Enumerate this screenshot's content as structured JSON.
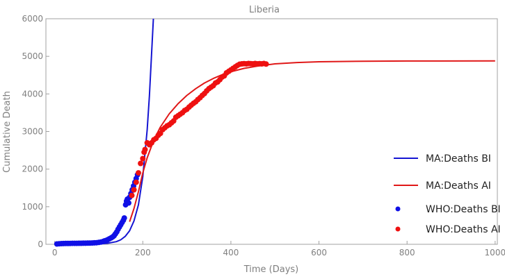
{
  "colors": {
    "ma_bi": "#1414d2",
    "ma_ai": "#e01818",
    "who_bi": "#1010e6",
    "who_ai": "#ee1010",
    "frame": "#a0a0a0",
    "text": "#7f7f7f",
    "legend_text": "#222222"
  },
  "chart_data": {
    "type": "line",
    "title": "Liberia",
    "xlabel": "Time (Days)",
    "ylabel": "Cumulative Death",
    "xlim": [
      -20,
      1005
    ],
    "ylim": [
      0,
      6000
    ],
    "xticks": [
      0,
      200,
      400,
      600,
      800,
      1000
    ],
    "yticks": [
      0,
      1000,
      2000,
      3000,
      4000,
      5000,
      6000
    ],
    "legend_position": "right",
    "series": [
      {
        "name": "MA:Deaths BI",
        "kind": "line",
        "color_key": "ma_bi",
        "x": [
          0,
          40,
          80,
          100,
          120,
          140,
          150,
          160,
          170,
          180,
          190,
          200,
          210,
          215,
          220,
          224
        ],
        "y": [
          0,
          2,
          6,
          12,
          28,
          70,
          120,
          210,
          360,
          620,
          1050,
          1800,
          3050,
          3950,
          5100,
          6000
        ]
      },
      {
        "name": "MA:Deaths AI",
        "kind": "line",
        "color_key": "ma_ai",
        "x": [
          170,
          180,
          190,
          200,
          210,
          220,
          230,
          240,
          260,
          280,
          300,
          320,
          340,
          360,
          380,
          400,
          430,
          460,
          500,
          550,
          600,
          700,
          800,
          1000
        ],
        "y": [
          600,
          950,
          1400,
          1900,
          2300,
          2620,
          2890,
          3120,
          3470,
          3740,
          3960,
          4140,
          4290,
          4410,
          4510,
          4590,
          4680,
          4740,
          4800,
          4835,
          4855,
          4870,
          4875,
          4880
        ]
      },
      {
        "name": "WHO:Deaths BI",
        "kind": "scatter",
        "color_key": "who_bi",
        "x": [
          5,
          10,
          15,
          20,
          25,
          30,
          35,
          40,
          45,
          50,
          55,
          60,
          65,
          70,
          75,
          80,
          85,
          90,
          95,
          100,
          105,
          110,
          113,
          116,
          120,
          124,
          128,
          132,
          135,
          138,
          141,
          144,
          147,
          150,
          153,
          156,
          158,
          161,
          163,
          165,
          168,
          170,
          173,
          176,
          179,
          182,
          185,
          188
        ],
        "y": [
          10,
          15,
          18,
          20,
          22,
          22,
          24,
          25,
          25,
          26,
          27,
          28,
          30,
          30,
          32,
          33,
          35,
          38,
          42,
          50,
          60,
          75,
          90,
          100,
          120,
          145,
          170,
          200,
          230,
          280,
          330,
          400,
          460,
          520,
          580,
          640,
          700,
          1050,
          1150,
          1200,
          1100,
          1250,
          1350,
          1450,
          1550,
          1650,
          1750,
          1850
        ]
      },
      {
        "name": "WHO:Deaths AI",
        "kind": "scatter",
        "color_key": "who_ai",
        "x": [
          175,
          180,
          185,
          190,
          195,
          200,
          203,
          205,
          210,
          215,
          220,
          225,
          230,
          235,
          240,
          245,
          250,
          255,
          260,
          265,
          270,
          275,
          280,
          285,
          290,
          295,
          300,
          305,
          310,
          315,
          320,
          325,
          330,
          335,
          340,
          345,
          350,
          355,
          360,
          365,
          370,
          375,
          380,
          385,
          390,
          395,
          400,
          405,
          410,
          415,
          420,
          425,
          430,
          435,
          440,
          445,
          450,
          455,
          460,
          465,
          470,
          475,
          480
        ],
        "y": [
          1300,
          1450,
          1650,
          1900,
          2150,
          2280,
          2450,
          2520,
          2700,
          2650,
          2700,
          2780,
          2820,
          2900,
          2950,
          3050,
          3100,
          3150,
          3180,
          3230,
          3280,
          3380,
          3420,
          3460,
          3500,
          3560,
          3590,
          3650,
          3700,
          3750,
          3790,
          3850,
          3900,
          3960,
          4010,
          4080,
          4140,
          4180,
          4220,
          4290,
          4320,
          4380,
          4450,
          4480,
          4560,
          4600,
          4640,
          4680,
          4720,
          4760,
          4790,
          4800,
          4805,
          4800,
          4810,
          4805,
          4800,
          4810,
          4800,
          4805,
          4800,
          4810,
          4795
        ]
      }
    ]
  }
}
